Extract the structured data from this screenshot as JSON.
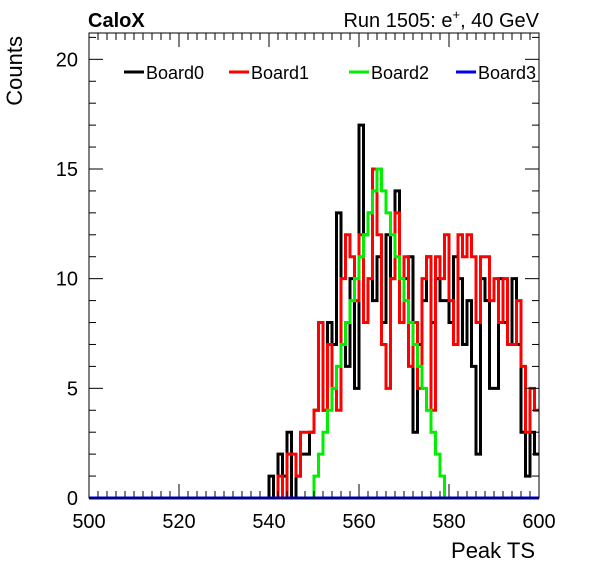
{
  "header": {
    "experiment": "CaloX",
    "run_label_prefix": "Run 1505: e",
    "run_label_sup": "+",
    "run_label_suffix": ", 40 GeV"
  },
  "chart_data": {
    "type": "line",
    "style": "step-histogram",
    "title": "",
    "xlabel": "Peak TS",
    "ylabel": "Counts",
    "xlim": [
      500,
      600
    ],
    "ylim": [
      0,
      21.2
    ],
    "xticks": [
      500,
      520,
      540,
      560,
      580,
      600
    ],
    "yticks": [
      0,
      5,
      10,
      15,
      20
    ],
    "legend_position": "top",
    "grid": false,
    "bin_start": 500,
    "bin_width": 1,
    "series": [
      {
        "name": "Board0",
        "color": "#000000",
        "values": [
          0,
          0,
          0,
          0,
          0,
          0,
          0,
          0,
          0,
          0,
          0,
          0,
          0,
          0,
          0,
          0,
          0,
          0,
          0,
          0,
          0,
          0,
          0,
          0,
          0,
          0,
          0,
          0,
          0,
          0,
          0,
          0,
          0,
          0,
          0,
          0,
          0,
          0,
          0,
          0,
          1,
          0,
          2,
          1,
          3,
          0,
          1,
          2,
          2,
          3,
          4,
          8,
          4,
          8,
          7,
          13,
          7,
          6,
          10,
          5,
          17,
          12,
          13,
          9,
          11,
          8,
          12,
          10,
          14,
          8,
          10,
          11,
          3,
          7,
          9,
          11,
          8,
          10,
          9,
          9,
          8,
          11,
          10,
          7,
          9,
          6,
          2,
          10,
          9,
          5,
          5,
          10,
          8,
          7,
          10,
          7,
          3,
          1,
          3,
          2
        ]
      },
      {
        "name": "Board1",
        "color": "#ff0000",
        "values": [
          0,
          0,
          0,
          0,
          0,
          0,
          0,
          0,
          0,
          0,
          0,
          0,
          0,
          0,
          0,
          0,
          0,
          0,
          0,
          0,
          0,
          0,
          0,
          0,
          0,
          0,
          0,
          0,
          0,
          0,
          0,
          0,
          0,
          0,
          0,
          0,
          0,
          0,
          0,
          0,
          0,
          0,
          1,
          0,
          2,
          2,
          1,
          3,
          3,
          3,
          4,
          8,
          4,
          7,
          5,
          4,
          10,
          12,
          11,
          9,
          12,
          8,
          10,
          15,
          12,
          7,
          5,
          10,
          13,
          8,
          11,
          6,
          8,
          5,
          10,
          11,
          4,
          11,
          10,
          12,
          9,
          7,
          12,
          11,
          12,
          11,
          8,
          11,
          11,
          9,
          10,
          8,
          10,
          7,
          7,
          9,
          6,
          3,
          5,
          4
        ]
      },
      {
        "name": "Board2",
        "color": "#00ee00",
        "values": [
          0,
          0,
          0,
          0,
          0,
          0,
          0,
          0,
          0,
          0,
          0,
          0,
          0,
          0,
          0,
          0,
          0,
          0,
          0,
          0,
          0,
          0,
          0,
          0,
          0,
          0,
          0,
          0,
          0,
          0,
          0,
          0,
          0,
          0,
          0,
          0,
          0,
          0,
          0,
          0,
          0,
          0,
          0,
          0,
          0,
          0,
          0,
          0,
          0,
          0,
          1,
          2,
          3,
          4,
          5,
          6,
          7,
          8,
          9,
          10,
          11,
          12,
          13,
          14,
          15,
          14,
          13,
          12,
          11,
          10,
          9,
          8,
          7,
          6,
          5,
          4,
          3,
          2,
          1,
          0,
          0,
          0,
          0,
          0,
          0,
          0,
          0,
          0,
          0,
          0,
          0,
          0,
          0,
          0,
          0,
          0,
          0,
          0,
          0,
          0
        ]
      },
      {
        "name": "Board3",
        "color": "#0000ee",
        "values": [
          0,
          0,
          0,
          0,
          0,
          0,
          0,
          0,
          0,
          0,
          0,
          0,
          0,
          0,
          0,
          0,
          0,
          0,
          0,
          0,
          0,
          0,
          0,
          0,
          0,
          0,
          0,
          0,
          0,
          0,
          0,
          0,
          0,
          0,
          0,
          0,
          0,
          0,
          0,
          0,
          0,
          0,
          0,
          0,
          0,
          0,
          0,
          0,
          0,
          0,
          0,
          0,
          0,
          0,
          0,
          0,
          0,
          0,
          0,
          0,
          0,
          0,
          0,
          0,
          0,
          0,
          0,
          0,
          0,
          0,
          0,
          0,
          0,
          0,
          0,
          0,
          0,
          0,
          0,
          0,
          0,
          0,
          0,
          0,
          0,
          0,
          0,
          0,
          0,
          0,
          0,
          0,
          0,
          0,
          0,
          0,
          0,
          0,
          0,
          0
        ]
      }
    ]
  }
}
